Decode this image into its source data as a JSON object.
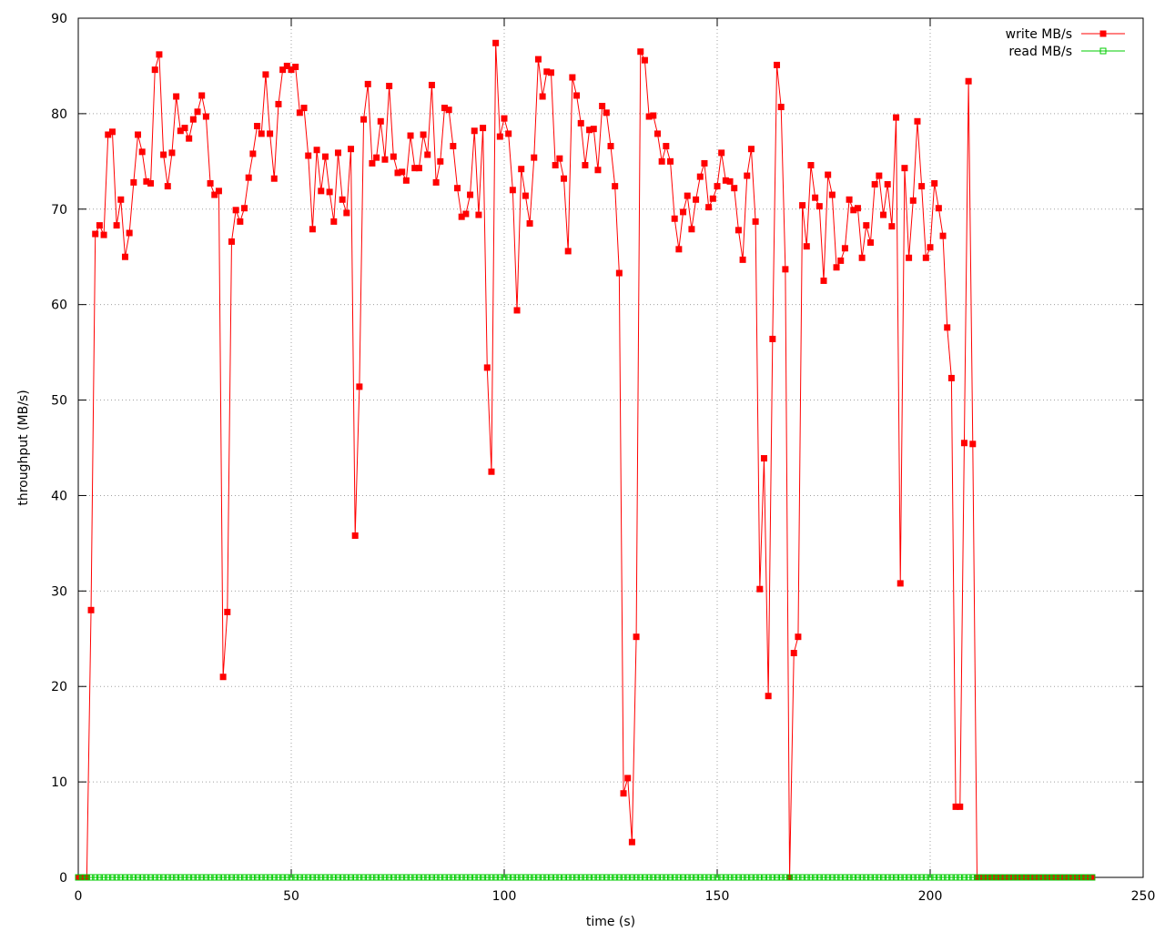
{
  "chart_data": {
    "type": "line",
    "title": "",
    "xlabel": "time (s)",
    "ylabel": "throughput (MB/s)",
    "xlim": [
      0,
      250
    ],
    "ylim": [
      0,
      90
    ],
    "xticks": [
      0,
      50,
      100,
      150,
      200,
      250
    ],
    "yticks": [
      0,
      10,
      20,
      30,
      40,
      50,
      60,
      70,
      80,
      90
    ],
    "grid": true,
    "legend_position": "top-right",
    "x": [
      0,
      1,
      2,
      3,
      4,
      5,
      6,
      7,
      8,
      9,
      10,
      11,
      12,
      13,
      14,
      15,
      16,
      17,
      18,
      19,
      20,
      21,
      22,
      23,
      24,
      25,
      26,
      27,
      28,
      29,
      30,
      31,
      32,
      33,
      34,
      35,
      36,
      37,
      38,
      39,
      40,
      41,
      42,
      43,
      44,
      45,
      46,
      47,
      48,
      49,
      50,
      51,
      52,
      53,
      54,
      55,
      56,
      57,
      58,
      59,
      60,
      61,
      62,
      63,
      64,
      65,
      66,
      67,
      68,
      69,
      70,
      71,
      72,
      73,
      74,
      75,
      76,
      77,
      78,
      79,
      80,
      81,
      82,
      83,
      84,
      85,
      86,
      87,
      88,
      89,
      90,
      91,
      92,
      93,
      94,
      95,
      96,
      97,
      98,
      99,
      100,
      101,
      102,
      103,
      104,
      105,
      106,
      107,
      108,
      109,
      110,
      111,
      112,
      113,
      114,
      115,
      116,
      117,
      118,
      119,
      120,
      121,
      122,
      123,
      124,
      125,
      126,
      127,
      128,
      129,
      130,
      131,
      132,
      133,
      134,
      135,
      136,
      137,
      138,
      139,
      140,
      141,
      142,
      143,
      144,
      145,
      146,
      147,
      148,
      149,
      150,
      151,
      152,
      153,
      154,
      155,
      156,
      157,
      158,
      159,
      160,
      161,
      162,
      163,
      164,
      165,
      166,
      167,
      168,
      169,
      170,
      171,
      172,
      173,
      174,
      175,
      176,
      177,
      178,
      179,
      180,
      181,
      182,
      183,
      184,
      185,
      186,
      187,
      188,
      189,
      190,
      191,
      192,
      193,
      194,
      195,
      196,
      197,
      198,
      199,
      200,
      201,
      202,
      203,
      204,
      205,
      206,
      207,
      208,
      209,
      210,
      211,
      212,
      213,
      214,
      215,
      216,
      217,
      218,
      219,
      220,
      221,
      222,
      223,
      224,
      225,
      226,
      227,
      228,
      229,
      230,
      231,
      232,
      233,
      234,
      235,
      236,
      237,
      238
    ],
    "series": [
      {
        "name": "write MB/s",
        "color": "#ff0000",
        "marker": "filled-square",
        "values": [
          0,
          0,
          0,
          28.0,
          67.4,
          68.3,
          67.3,
          77.8,
          78.1,
          68.3,
          71.0,
          65.0,
          67.5,
          72.8,
          77.8,
          76.0,
          72.9,
          72.7,
          84.6,
          86.2,
          75.7,
          72.4,
          75.9,
          81.8,
          78.2,
          78.5,
          77.4,
          79.4,
          80.2,
          81.9,
          79.7,
          72.7,
          71.5,
          71.9,
          21.0,
          27.8,
          66.6,
          69.9,
          68.7,
          70.1,
          73.3,
          75.8,
          78.7,
          77.9,
          84.1,
          77.9,
          73.2,
          81.0,
          84.6,
          85.0,
          84.6,
          84.9,
          80.1,
          80.6,
          75.6,
          67.9,
          76.2,
          71.9,
          75.5,
          71.8,
          68.7,
          75.9,
          71.0,
          69.6,
          76.3,
          35.8,
          51.4,
          79.4,
          83.1,
          74.8,
          75.4,
          79.2,
          75.2,
          82.9,
          75.5,
          73.8,
          73.9,
          73.0,
          77.7,
          74.3,
          74.3,
          77.8,
          75.7,
          83.0,
          72.8,
          75.0,
          80.6,
          80.4,
          76.6,
          72.2,
          69.2,
          69.5,
          71.5,
          78.2,
          69.4,
          78.5,
          53.4,
          42.5,
          87.4,
          77.6,
          79.5,
          77.9,
          72.0,
          59.4,
          74.2,
          71.4,
          68.5,
          75.4,
          85.7,
          81.8,
          84.4,
          84.3,
          74.6,
          75.3,
          73.2,
          65.6,
          83.8,
          81.9,
          79.0,
          74.6,
          78.3,
          78.4,
          74.1,
          80.8,
          80.1,
          76.6,
          72.4,
          63.3,
          8.8,
          10.4,
          3.7,
          25.2,
          86.5,
          85.6,
          79.7,
          79.8,
          77.9,
          75.0,
          76.6,
          75.0,
          69.0,
          65.8,
          69.7,
          71.4,
          67.9,
          71.0,
          73.4,
          74.8,
          70.2,
          71.1,
          72.4,
          75.9,
          73.0,
          72.9,
          72.2,
          67.8,
          64.7,
          73.5,
          76.3,
          68.7,
          30.2,
          43.9,
          19.0,
          56.4,
          85.1,
          80.7,
          63.7,
          0,
          23.5,
          25.2,
          70.4,
          66.1,
          74.6,
          71.2,
          70.3,
          62.5,
          73.6,
          71.5,
          63.9,
          64.6,
          65.9,
          71.0,
          69.9,
          70.1,
          64.9,
          68.3,
          66.5,
          72.6,
          73.5,
          69.4,
          72.6,
          68.2,
          79.6,
          30.8,
          74.3,
          64.9,
          70.9,
          79.2,
          72.4,
          64.9,
          66.0,
          72.7,
          70.1,
          67.2,
          57.6,
          52.3,
          7.4,
          7.4,
          45.5,
          83.4,
          45.4,
          0,
          0,
          0,
          0,
          0,
          0,
          0,
          0,
          0,
          0,
          0,
          0,
          0,
          0,
          0,
          0,
          0,
          0,
          0,
          0,
          0,
          0,
          0,
          0,
          0,
          0,
          0,
          0
        ]
      },
      {
        "name": "read MB/s",
        "color": "#00cc00",
        "marker": "open-square",
        "values": [
          0,
          0,
          0,
          0,
          0,
          0,
          0,
          0,
          0,
          0,
          0,
          0,
          0,
          0,
          0,
          0,
          0,
          0,
          0,
          0,
          0,
          0,
          0,
          0,
          0,
          0,
          0,
          0,
          0,
          0,
          0,
          0,
          0,
          0,
          0,
          0,
          0,
          0,
          0,
          0,
          0,
          0,
          0,
          0,
          0,
          0,
          0,
          0,
          0,
          0,
          0,
          0,
          0,
          0,
          0,
          0,
          0,
          0,
          0,
          0,
          0,
          0,
          0,
          0,
          0,
          0,
          0,
          0,
          0,
          0,
          0,
          0,
          0,
          0,
          0,
          0,
          0,
          0,
          0,
          0,
          0,
          0,
          0,
          0,
          0,
          0,
          0,
          0,
          0,
          0,
          0,
          0,
          0,
          0,
          0,
          0,
          0,
          0,
          0,
          0,
          0,
          0,
          0,
          0,
          0,
          0,
          0,
          0,
          0,
          0,
          0,
          0,
          0,
          0,
          0,
          0,
          0,
          0,
          0,
          0,
          0,
          0,
          0,
          0,
          0,
          0,
          0,
          0,
          0,
          0,
          0,
          0,
          0,
          0,
          0,
          0,
          0,
          0,
          0,
          0,
          0,
          0,
          0,
          0,
          0,
          0,
          0,
          0,
          0,
          0,
          0,
          0,
          0,
          0,
          0,
          0,
          0,
          0,
          0,
          0,
          0,
          0,
          0,
          0,
          0,
          0,
          0,
          0,
          0,
          0,
          0,
          0,
          0,
          0,
          0,
          0,
          0,
          0,
          0,
          0,
          0,
          0,
          0,
          0,
          0,
          0,
          0,
          0,
          0,
          0,
          0,
          0,
          0,
          0,
          0,
          0,
          0,
          0,
          0,
          0,
          0,
          0,
          0,
          0,
          0,
          0,
          0,
          0,
          0,
          0,
          0,
          0,
          0,
          0,
          0,
          0,
          0,
          0,
          0,
          0,
          0,
          0,
          0,
          0,
          0,
          0,
          0,
          0,
          0,
          0,
          0,
          0,
          0,
          0,
          0,
          0,
          0,
          0,
          0
        ]
      }
    ]
  }
}
